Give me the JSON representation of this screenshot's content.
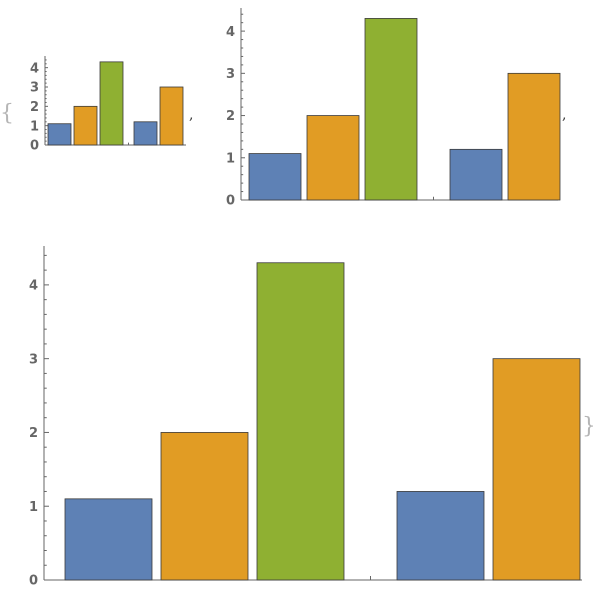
{
  "list_brackets": {
    "open": "{",
    "close": "}",
    "separator": ","
  },
  "colors": {
    "series_1": "#5e81b5",
    "series_2": "#e19c24",
    "series_3": "#8fb032"
  },
  "chart_data": [
    {
      "type": "bar",
      "groups": [
        {
          "values": [
            1.1,
            2.0,
            4.3
          ]
        },
        {
          "values": [
            1.2,
            3.0
          ]
        }
      ],
      "ylim": [
        0,
        4.5
      ],
      "yticks": [
        "0",
        "1",
        "2",
        "3",
        "4"
      ],
      "grid": false,
      "legend": "none"
    },
    {
      "type": "bar",
      "groups": [
        {
          "values": [
            1.1,
            2.0,
            4.3
          ]
        },
        {
          "values": [
            1.2,
            3.0
          ]
        }
      ],
      "ylim": [
        0,
        4.5
      ],
      "yticks": [
        "0",
        "1",
        "2",
        "3",
        "4"
      ],
      "grid": false,
      "legend": "none"
    },
    {
      "type": "bar",
      "groups": [
        {
          "values": [
            1.1,
            2.0,
            4.3
          ]
        },
        {
          "values": [
            1.2,
            3.0
          ]
        }
      ],
      "ylim": [
        0,
        4.5
      ],
      "yticks": [
        "0",
        "1",
        "2",
        "3",
        "4"
      ],
      "grid": false,
      "legend": "none"
    }
  ]
}
